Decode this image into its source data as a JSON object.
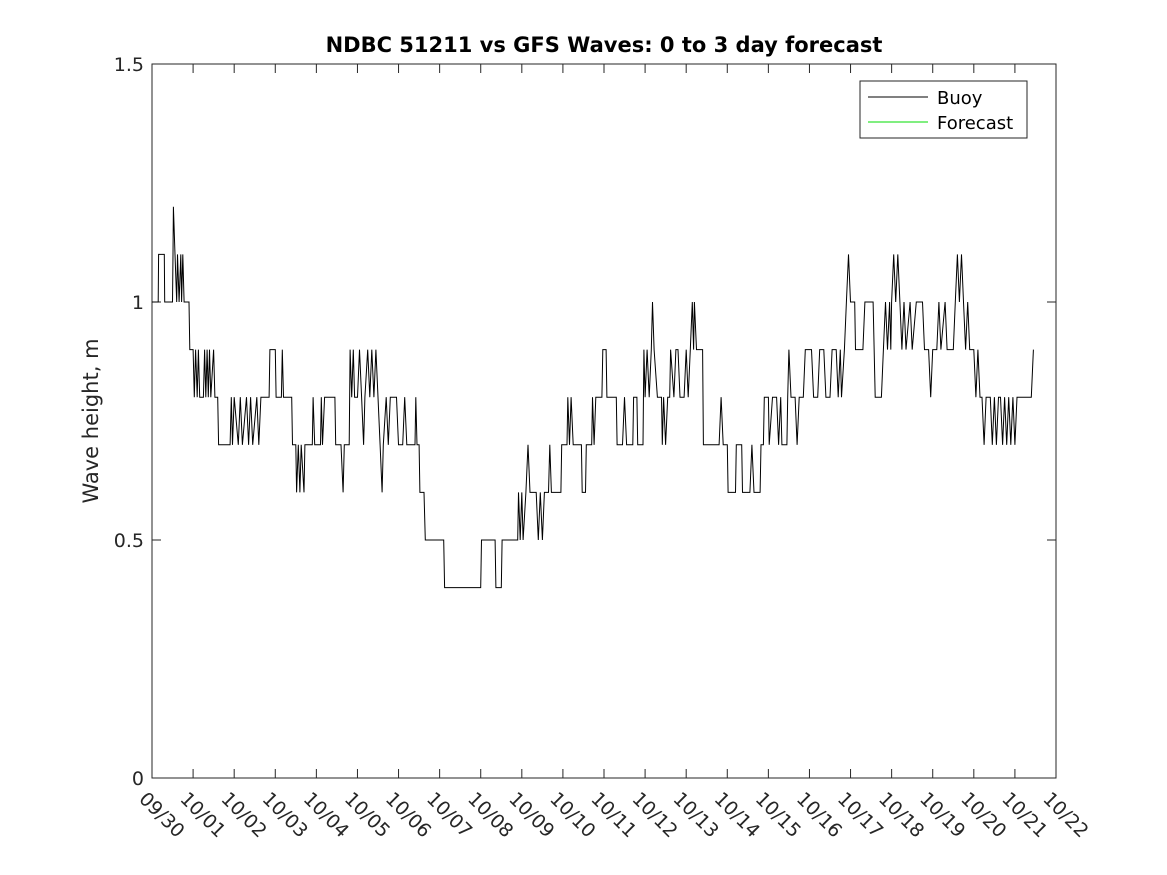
{
  "chart_data": {
    "type": "line",
    "title": "NDBC 51211 vs GFS Waves: 0 to 3 day forecast",
    "xlabel": "",
    "ylabel": "Wave height, m",
    "x_ticks": [
      "09/30",
      "10/01",
      "10/02",
      "10/03",
      "10/04",
      "10/05",
      "10/06",
      "10/07",
      "10/08",
      "10/09",
      "10/10",
      "10/11",
      "10/12",
      "10/13",
      "10/14",
      "10/15",
      "10/16",
      "10/17",
      "10/18",
      "10/19",
      "10/20",
      "10/21",
      "10/22"
    ],
    "y_ticks": [
      "0",
      "0.5",
      "1",
      "1.5"
    ],
    "xlim": [
      0,
      22
    ],
    "ylim": [
      0,
      1.5
    ],
    "grid": false,
    "legend_position": "top-right",
    "series": [
      {
        "name": "Buoy",
        "color": "#000000",
        "points": [
          [
            0,
            1.0
          ],
          [
            0.15,
            1.0
          ],
          [
            0.16,
            1.1
          ],
          [
            0.3,
            1.1
          ],
          [
            0.31,
            1.0
          ],
          [
            0.5,
            1.0
          ],
          [
            0.51,
            1.1
          ],
          [
            0.52,
            1.2
          ],
          [
            0.56,
            1.1
          ],
          [
            0.6,
            1.0
          ],
          [
            0.62,
            1.1
          ],
          [
            0.66,
            1.0
          ],
          [
            0.7,
            1.1
          ],
          [
            0.72,
            1.0
          ],
          [
            0.75,
            1.1
          ],
          [
            0.78,
            1.0
          ],
          [
            0.9,
            1.0
          ],
          [
            0.92,
            0.9
          ],
          [
            1.0,
            0.9
          ],
          [
            1.03,
            0.8
          ],
          [
            1.06,
            0.9
          ],
          [
            1.1,
            0.8
          ],
          [
            1.13,
            0.9
          ],
          [
            1.16,
            0.8
          ],
          [
            1.25,
            0.8
          ],
          [
            1.28,
            0.9
          ],
          [
            1.31,
            0.8
          ],
          [
            1.34,
            0.9
          ],
          [
            1.37,
            0.8
          ],
          [
            1.4,
            0.9
          ],
          [
            1.43,
            0.8
          ],
          [
            1.5,
            0.9
          ],
          [
            1.53,
            0.8
          ],
          [
            1.6,
            0.8
          ],
          [
            1.62,
            0.7
          ],
          [
            1.9,
            0.7
          ],
          [
            1.93,
            0.8
          ],
          [
            1.96,
            0.7
          ],
          [
            2.0,
            0.8
          ],
          [
            2.1,
            0.7
          ],
          [
            2.15,
            0.8
          ],
          [
            2.2,
            0.7
          ],
          [
            2.3,
            0.8
          ],
          [
            2.35,
            0.7
          ],
          [
            2.4,
            0.8
          ],
          [
            2.45,
            0.7
          ],
          [
            2.55,
            0.8
          ],
          [
            2.6,
            0.7
          ],
          [
            2.65,
            0.8
          ],
          [
            2.85,
            0.8
          ],
          [
            2.87,
            0.9
          ],
          [
            3.0,
            0.9
          ],
          [
            3.02,
            0.8
          ],
          [
            3.15,
            0.8
          ],
          [
            3.17,
            0.9
          ],
          [
            3.2,
            0.8
          ],
          [
            3.4,
            0.8
          ],
          [
            3.42,
            0.7
          ],
          [
            3.5,
            0.7
          ],
          [
            3.52,
            0.6
          ],
          [
            3.56,
            0.7
          ],
          [
            3.6,
            0.6
          ],
          [
            3.63,
            0.7
          ],
          [
            3.7,
            0.6
          ],
          [
            3.72,
            0.7
          ],
          [
            3.9,
            0.7
          ],
          [
            3.92,
            0.8
          ],
          [
            3.96,
            0.7
          ],
          [
            4.1,
            0.7
          ],
          [
            4.12,
            0.8
          ],
          [
            4.15,
            0.7
          ],
          [
            4.2,
            0.8
          ],
          [
            4.45,
            0.8
          ],
          [
            4.47,
            0.7
          ],
          [
            4.6,
            0.7
          ],
          [
            4.65,
            0.6
          ],
          [
            4.68,
            0.7
          ],
          [
            4.8,
            0.7
          ],
          [
            4.82,
            0.9
          ],
          [
            4.86,
            0.8
          ],
          [
            4.9,
            0.9
          ],
          [
            4.93,
            0.8
          ],
          [
            5.0,
            0.8
          ],
          [
            5.05,
            0.9
          ],
          [
            5.1,
            0.8
          ],
          [
            5.15,
            0.7
          ],
          [
            5.18,
            0.8
          ],
          [
            5.25,
            0.9
          ],
          [
            5.3,
            0.8
          ],
          [
            5.35,
            0.9
          ],
          [
            5.4,
            0.8
          ],
          [
            5.45,
            0.9
          ],
          [
            5.5,
            0.8
          ],
          [
            5.55,
            0.7
          ],
          [
            5.6,
            0.6
          ],
          [
            5.63,
            0.7
          ],
          [
            5.7,
            0.8
          ],
          [
            5.75,
            0.7
          ],
          [
            5.8,
            0.8
          ],
          [
            5.95,
            0.8
          ],
          [
            6.0,
            0.7
          ],
          [
            6.1,
            0.7
          ],
          [
            6.15,
            0.8
          ],
          [
            6.2,
            0.7
          ],
          [
            6.4,
            0.7
          ],
          [
            6.42,
            0.8
          ],
          [
            6.45,
            0.7
          ],
          [
            6.5,
            0.7
          ],
          [
            6.52,
            0.6
          ],
          [
            6.62,
            0.6
          ],
          [
            6.65,
            0.5
          ],
          [
            7.0,
            0.5
          ],
          [
            7.1,
            0.5
          ],
          [
            7.12,
            0.4
          ],
          [
            7.5,
            0.4
          ],
          [
            8.0,
            0.4
          ],
          [
            8.02,
            0.5
          ],
          [
            8.35,
            0.5
          ],
          [
            8.37,
            0.4
          ],
          [
            8.5,
            0.4
          ],
          [
            8.52,
            0.5
          ],
          [
            8.9,
            0.5
          ],
          [
            8.92,
            0.6
          ],
          [
            8.96,
            0.5
          ],
          [
            9.0,
            0.6
          ],
          [
            9.03,
            0.5
          ],
          [
            9.1,
            0.6
          ],
          [
            9.15,
            0.7
          ],
          [
            9.2,
            0.6
          ],
          [
            9.35,
            0.6
          ],
          [
            9.4,
            0.5
          ],
          [
            9.45,
            0.6
          ],
          [
            9.5,
            0.5
          ],
          [
            9.55,
            0.6
          ],
          [
            9.65,
            0.6
          ],
          [
            9.68,
            0.7
          ],
          [
            9.72,
            0.6
          ],
          [
            9.95,
            0.6
          ],
          [
            9.97,
            0.7
          ],
          [
            10.1,
            0.7
          ],
          [
            10.12,
            0.8
          ],
          [
            10.16,
            0.7
          ],
          [
            10.2,
            0.8
          ],
          [
            10.25,
            0.7
          ],
          [
            10.45,
            0.7
          ],
          [
            10.47,
            0.6
          ],
          [
            10.55,
            0.6
          ],
          [
            10.57,
            0.7
          ],
          [
            10.7,
            0.7
          ],
          [
            10.72,
            0.8
          ],
          [
            10.76,
            0.7
          ],
          [
            10.8,
            0.8
          ],
          [
            10.95,
            0.8
          ],
          [
            10.97,
            0.9
          ],
          [
            11.05,
            0.9
          ],
          [
            11.07,
            0.8
          ],
          [
            11.15,
            0.8
          ],
          [
            11.2,
            0.8
          ],
          [
            11.3,
            0.8
          ],
          [
            11.32,
            0.7
          ],
          [
            11.45,
            0.7
          ],
          [
            11.5,
            0.8
          ],
          [
            11.55,
            0.7
          ],
          [
            11.7,
            0.7
          ],
          [
            11.72,
            0.8
          ],
          [
            11.8,
            0.8
          ],
          [
            11.82,
            0.7
          ],
          [
            11.95,
            0.7
          ],
          [
            11.97,
            0.9
          ],
          [
            12.0,
            0.8
          ],
          [
            12.05,
            0.9
          ],
          [
            12.1,
            0.8
          ],
          [
            12.15,
            0.9
          ],
          [
            12.18,
            1.0
          ],
          [
            12.22,
            0.9
          ],
          [
            12.3,
            0.8
          ],
          [
            12.4,
            0.8
          ],
          [
            12.42,
            0.7
          ],
          [
            12.45,
            0.8
          ],
          [
            12.5,
            0.7
          ],
          [
            12.55,
            0.8
          ],
          [
            12.6,
            0.8
          ],
          [
            12.62,
            0.9
          ],
          [
            12.7,
            0.8
          ],
          [
            12.75,
            0.9
          ],
          [
            12.8,
            0.9
          ],
          [
            12.85,
            0.8
          ],
          [
            12.95,
            0.8
          ],
          [
            13.0,
            0.9
          ],
          [
            13.05,
            0.8
          ],
          [
            13.1,
            0.9
          ],
          [
            13.15,
            1.0
          ],
          [
            13.18,
            0.9
          ],
          [
            13.2,
            1.0
          ],
          [
            13.25,
            0.9
          ],
          [
            13.4,
            0.9
          ],
          [
            13.42,
            0.7
          ],
          [
            13.8,
            0.7
          ],
          [
            13.85,
            0.8
          ],
          [
            13.9,
            0.7
          ],
          [
            14.0,
            0.7
          ],
          [
            14.02,
            0.6
          ],
          [
            14.2,
            0.6
          ],
          [
            14.22,
            0.7
          ],
          [
            14.35,
            0.7
          ],
          [
            14.37,
            0.6
          ],
          [
            14.55,
            0.6
          ],
          [
            14.6,
            0.7
          ],
          [
            14.65,
            0.6
          ],
          [
            14.8,
            0.6
          ],
          [
            14.82,
            0.7
          ],
          [
            14.88,
            0.7
          ],
          [
            14.9,
            0.8
          ],
          [
            15.0,
            0.8
          ],
          [
            15.02,
            0.7
          ],
          [
            15.1,
            0.8
          ],
          [
            15.15,
            0.8
          ],
          [
            15.2,
            0.8
          ],
          [
            15.25,
            0.7
          ],
          [
            15.3,
            0.8
          ],
          [
            15.33,
            0.7
          ],
          [
            15.45,
            0.7
          ],
          [
            15.47,
            0.8
          ],
          [
            15.5,
            0.9
          ],
          [
            15.55,
            0.8
          ],
          [
            15.65,
            0.8
          ],
          [
            15.7,
            0.7
          ],
          [
            15.75,
            0.8
          ],
          [
            15.85,
            0.8
          ],
          [
            15.9,
            0.9
          ],
          [
            16.05,
            0.9
          ],
          [
            16.1,
            0.8
          ],
          [
            16.2,
            0.8
          ],
          [
            16.25,
            0.9
          ],
          [
            16.35,
            0.9
          ],
          [
            16.4,
            0.8
          ],
          [
            16.5,
            0.8
          ],
          [
            16.55,
            0.9
          ],
          [
            16.65,
            0.9
          ],
          [
            16.7,
            0.8
          ],
          [
            16.75,
            0.9
          ],
          [
            16.78,
            0.8
          ],
          [
            16.85,
            0.9
          ],
          [
            16.9,
            1.0
          ],
          [
            16.95,
            1.1
          ],
          [
            17.0,
            1.0
          ],
          [
            17.1,
            1.0
          ],
          [
            17.12,
            0.9
          ],
          [
            17.3,
            0.9
          ],
          [
            17.35,
            1.0
          ],
          [
            17.55,
            1.0
          ],
          [
            17.6,
            0.8
          ],
          [
            17.75,
            0.8
          ],
          [
            17.8,
            0.9
          ],
          [
            17.85,
            1.0
          ],
          [
            17.9,
            0.9
          ],
          [
            17.95,
            1.0
          ],
          [
            17.98,
            0.9
          ],
          [
            18.0,
            1.0
          ],
          [
            18.05,
            1.1
          ],
          [
            18.1,
            1.0
          ],
          [
            18.15,
            1.1
          ],
          [
            18.2,
            1.0
          ],
          [
            18.25,
            0.9
          ],
          [
            18.3,
            1.0
          ],
          [
            18.35,
            0.9
          ],
          [
            18.45,
            1.0
          ],
          [
            18.5,
            0.9
          ],
          [
            18.6,
            1.0
          ],
          [
            18.75,
            1.0
          ],
          [
            18.8,
            0.9
          ],
          [
            18.9,
            0.9
          ],
          [
            18.95,
            0.8
          ],
          [
            19.0,
            0.9
          ],
          [
            19.1,
            0.9
          ],
          [
            19.15,
            1.0
          ],
          [
            19.2,
            0.9
          ],
          [
            19.3,
            1.0
          ],
          [
            19.35,
            0.9
          ],
          [
            19.5,
            0.9
          ],
          [
            19.55,
            1.0
          ],
          [
            19.6,
            1.1
          ],
          [
            19.65,
            1.0
          ],
          [
            19.7,
            1.1
          ],
          [
            19.75,
            1.0
          ],
          [
            19.8,
            0.9
          ],
          [
            19.85,
            1.0
          ],
          [
            19.9,
            0.9
          ],
          [
            20.0,
            0.9
          ],
          [
            20.05,
            0.8
          ],
          [
            20.1,
            0.9
          ],
          [
            20.15,
            0.8
          ],
          [
            20.2,
            0.8
          ],
          [
            20.25,
            0.7
          ],
          [
            20.3,
            0.8
          ],
          [
            20.4,
            0.8
          ],
          [
            20.45,
            0.7
          ],
          [
            20.5,
            0.8
          ],
          [
            20.55,
            0.7
          ],
          [
            20.6,
            0.8
          ],
          [
            20.65,
            0.8
          ],
          [
            20.7,
            0.7
          ],
          [
            20.75,
            0.8
          ],
          [
            20.8,
            0.7
          ],
          [
            20.85,
            0.8
          ],
          [
            20.9,
            0.7
          ],
          [
            20.95,
            0.8
          ],
          [
            21.0,
            0.7
          ],
          [
            21.05,
            0.8
          ],
          [
            21.4,
            0.8
          ],
          [
            21.45,
            0.9
          ]
        ]
      },
      {
        "name": "Forecast",
        "color": "#00dd00",
        "points": []
      }
    ]
  }
}
